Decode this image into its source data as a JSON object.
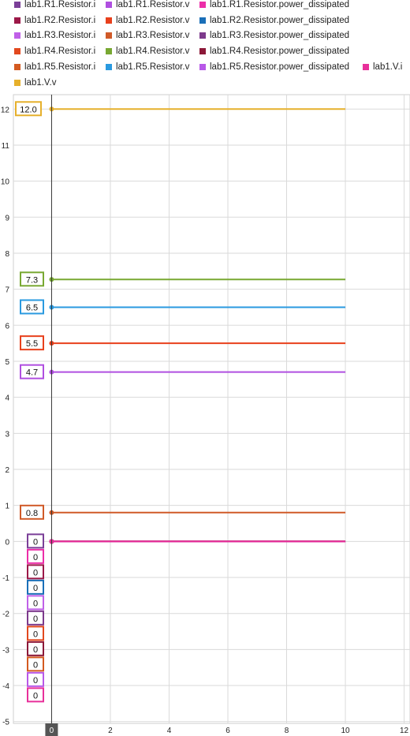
{
  "legend": [
    {
      "label": "lab1.R1.Resistor.i",
      "color": "#7b3f98"
    },
    {
      "label": "lab1.R1.Resistor.v",
      "color": "#b04fe0"
    },
    {
      "label": "lab1.R1.Resistor.power_dissipated",
      "color": "#ec2ea8"
    },
    {
      "label": "lab1.R2.Resistor.i",
      "color": "#9c1848"
    },
    {
      "label": "lab1.R2.Resistor.v",
      "color": "#e8401c"
    },
    {
      "label": "lab1.R2.Resistor.power_dissipated",
      "color": "#1a6fb8"
    },
    {
      "label": "lab1.R3.Resistor.i",
      "color": "#c060e8"
    },
    {
      "label": "lab1.R3.Resistor.v",
      "color": "#d05a28"
    },
    {
      "label": "lab1.R3.Resistor.power_dissipated",
      "color": "#7d3a8c"
    },
    {
      "label": "lab1.R4.Resistor.i",
      "color": "#e2481e"
    },
    {
      "label": "lab1.R4.Resistor.v",
      "color": "#78a832"
    },
    {
      "label": "lab1.R4.Resistor.power_dissipated",
      "color": "#8c1838"
    },
    {
      "label": "lab1.R5.Resistor.i",
      "color": "#d45a20"
    },
    {
      "label": "lab1.R5.Resistor.v",
      "color": "#2a9ae0"
    },
    {
      "label": "lab1.R5.Resistor.power_dissipated",
      "color": "#b858e8"
    },
    {
      "label": "lab1.V.i",
      "color": "#e8309a"
    },
    {
      "label": "lab1.V.v",
      "color": "#e6b02c"
    }
  ],
  "chart_data": {
    "type": "line",
    "xlim": [
      -1.3,
      12.2
    ],
    "ylim": [
      -5.05,
      12.4
    ],
    "x_ticks": [
      2,
      4,
      6,
      8,
      10,
      12
    ],
    "y_ticks": [
      12,
      11,
      10,
      9,
      8,
      7,
      6,
      5,
      4,
      3,
      2,
      1,
      0,
      -1,
      -2,
      -3,
      -4,
      -5
    ],
    "cursor": {
      "x": 0,
      "label": "0"
    },
    "grid": true,
    "series": [
      {
        "name": "lab1.V.v",
        "color": "#e6b02c",
        "x": [
          0,
          10
        ],
        "y": [
          12,
          12
        ],
        "label": "12.0"
      },
      {
        "name": "lab1.R4.Resistor.v",
        "color": "#78a832",
        "x": [
          0,
          10
        ],
        "y": [
          7.27,
          7.27
        ],
        "label": "7.3"
      },
      {
        "name": "lab1.R5.Resistor.v",
        "color": "#2a9ae0",
        "x": [
          0,
          10
        ],
        "y": [
          6.5,
          6.5
        ],
        "label": "6.5"
      },
      {
        "name": "lab1.R2.Resistor.v",
        "color": "#e8401c",
        "x": [
          0,
          10
        ],
        "y": [
          5.5,
          5.5
        ],
        "label": "5.5"
      },
      {
        "name": "lab1.R1.Resistor.v",
        "color": "#b04fe0",
        "x": [
          0,
          10
        ],
        "y": [
          4.7,
          4.7
        ],
        "label": "4.7"
      },
      {
        "name": "lab1.R3.Resistor.v",
        "color": "#d05a28",
        "x": [
          0,
          10
        ],
        "y": [
          0.8,
          0.8
        ],
        "label": "0.8"
      },
      {
        "name": "lab1.R1.Resistor.i",
        "color": "#7b3f98",
        "x": [
          0,
          10
        ],
        "y": [
          0,
          0
        ],
        "label": "0"
      },
      {
        "name": "lab1.R1.Resistor.power_dissipated",
        "color": "#ec2ea8",
        "x": [
          0,
          10
        ],
        "y": [
          0,
          0
        ],
        "label": "0"
      },
      {
        "name": "lab1.R2.Resistor.i",
        "color": "#9c1848",
        "x": [
          0,
          10
        ],
        "y": [
          0,
          0
        ],
        "label": "0"
      },
      {
        "name": "lab1.R2.Resistor.power_dissipated",
        "color": "#1a6fb8",
        "x": [
          0,
          10
        ],
        "y": [
          0,
          0
        ],
        "label": "0"
      },
      {
        "name": "lab1.R3.Resistor.i",
        "color": "#c060e8",
        "x": [
          0,
          10
        ],
        "y": [
          0,
          0
        ],
        "label": "0"
      },
      {
        "name": "lab1.R3.Resistor.power_dissipated",
        "color": "#7d3a8c",
        "x": [
          0,
          10
        ],
        "y": [
          0,
          0
        ],
        "label": "0"
      },
      {
        "name": "lab1.R4.Resistor.i",
        "color": "#e2481e",
        "x": [
          0,
          10
        ],
        "y": [
          0,
          0
        ],
        "label": "0"
      },
      {
        "name": "lab1.R4.Resistor.power_dissipated",
        "color": "#8c1838",
        "x": [
          0,
          10
        ],
        "y": [
          0,
          0
        ],
        "label": "0"
      },
      {
        "name": "lab1.R5.Resistor.i",
        "color": "#d45a20",
        "x": [
          0,
          10
        ],
        "y": [
          0,
          0
        ],
        "label": "0"
      },
      {
        "name": "lab1.R5.Resistor.power_dissipated",
        "color": "#b858e8",
        "x": [
          0,
          10
        ],
        "y": [
          0,
          0
        ],
        "label": "0"
      },
      {
        "name": "lab1.V.i",
        "color": "#e8309a",
        "x": [
          0,
          10
        ],
        "y": [
          0,
          0
        ],
        "label": "0"
      }
    ]
  }
}
